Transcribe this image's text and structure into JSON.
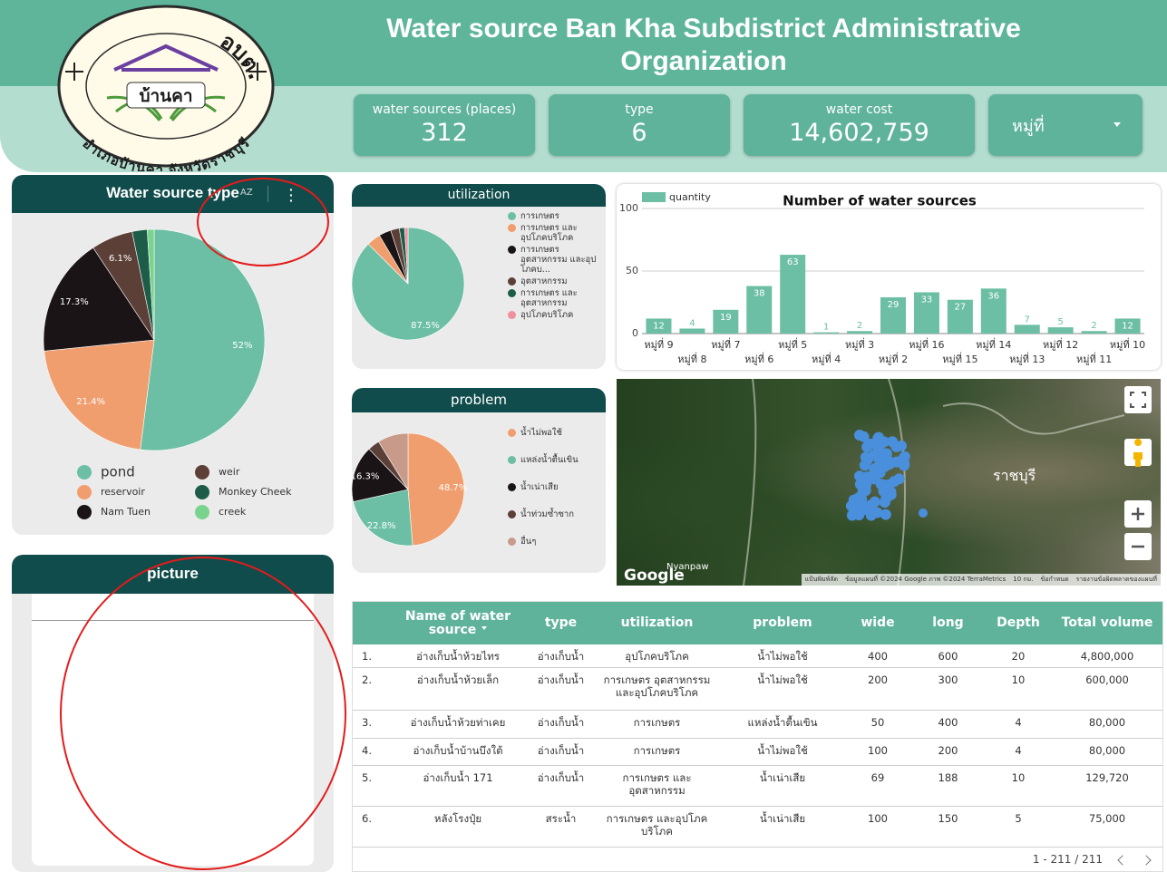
{
  "header": {
    "logo": {
      "top": "อบต.บ้านคา",
      "center": "บ้านคา",
      "bottom": "อำเภอบ้านคา จังหวัดราชบุรี"
    },
    "title": "Water source Ban Kha Subdistrict Administrative Organization"
  },
  "scorecards": [
    {
      "label": "water sources (places)",
      "value": "312"
    },
    {
      "label": "type",
      "value": "6"
    },
    {
      "label": "water cost",
      "value": "14,602,759"
    }
  ],
  "filter": {
    "label": "หมู่ที่"
  },
  "sort_icon": "AZ",
  "chart_data": [
    {
      "type": "pie",
      "title": "Water source type",
      "categories": [
        "pond",
        "reservoir",
        "Nam Tuen",
        "weir",
        "Monkey Cheek",
        "creek"
      ],
      "values": [
        52,
        21.4,
        17.3,
        6.1,
        2.2,
        1.0
      ],
      "value_labels": [
        "52%",
        "21.4%",
        "17.3%",
        "6.1%",
        null,
        null
      ],
      "colors": [
        "#6cbfa4",
        "#f19e6f",
        "#1b1416",
        "#5c4038",
        "#1e5c4a",
        "#78d48c"
      ],
      "legend": "bottom"
    },
    {
      "type": "pie",
      "title": "utilization",
      "categories": [
        "การเกษตร",
        "การเกษตร และ อุปโภคบริโภค",
        "การเกษตร อุตสาหกรรม และอุปโภคบ...",
        "อุตสาหกรรม",
        "การเกษตร และ อุตสาหกรรม",
        "อุปโภคบริโภค"
      ],
      "values": [
        87.5,
        4.0,
        3.5,
        2.5,
        1.5,
        1.0
      ],
      "value_labels": [
        "87.5%",
        null,
        null,
        null,
        null,
        null
      ],
      "colors": [
        "#6cbfa4",
        "#f19e6f",
        "#1b1416",
        "#5c4038",
        "#1e5c4a",
        "#f0909c"
      ],
      "legend": "right"
    },
    {
      "type": "pie",
      "title": "problem",
      "categories": [
        "น้ำไม่พอใช้",
        "แหล่งน้ำตื้นเขิน",
        "น้ำเน่าเสีย",
        "น้ำท่วมซ้ำซาก",
        "อื่นๆ"
      ],
      "values": [
        48.7,
        22.8,
        16.3,
        3.4,
        8.8
      ],
      "value_labels": [
        "48.7%",
        "22.8%",
        "16.3%",
        null,
        null
      ],
      "colors": [
        "#f19e6f",
        "#6cbfa4",
        "#1b1416",
        "#5c4038",
        "#c79a8a"
      ],
      "legend": "right"
    },
    {
      "type": "bar",
      "title": "Number of water sources",
      "categories": [
        "หมู่ที่ 9",
        "หมู่ที่ 8",
        "หมู่ที่ 7",
        "หมู่ที่ 6",
        "หมู่ที่ 5",
        "หมู่ที่ 4",
        "หมู่ที่ 3",
        "หมู่ที่ 2",
        "หมู่ที่ 16",
        "หมู่ที่ 15",
        "หมู่ที่ 14",
        "หมู่ที่ 13",
        "หมู่ที่ 12",
        "หมู่ที่ 11",
        "หมู่ที่ 10"
      ],
      "series": [
        {
          "name": "quantity",
          "color": "#6cbfa4",
          "values": [
            12,
            4,
            19,
            38,
            63,
            1,
            2,
            29,
            33,
            27,
            36,
            7,
            5,
            2,
            12
          ]
        }
      ],
      "ylim": [
        0,
        100
      ],
      "yticks": [
        0,
        50,
        100
      ],
      "grid": true,
      "legend": "top-left"
    }
  ],
  "picture": {
    "title": "picture"
  },
  "map": {
    "logo": "Google",
    "place_labels": [
      "Nyanpaw",
      "ราชบุรี"
    ],
    "attribution": [
      "แป้นพิมพ์ลัด",
      "ข้อมูลแผนที่ ©2024 Google ภาพ ©2024 TerraMetrics",
      "10 กม.",
      "ข้อกำหนด",
      "รายงานข้อผิดพลาดของแผนที่"
    ]
  },
  "table": {
    "columns": [
      "Name of water source",
      "type",
      "utilization",
      "problem",
      "wide",
      "long",
      "Depth",
      "Total volume"
    ],
    "rows": [
      [
        "1.",
        "อ่างเก็บน้ำห้วยไทร",
        "อ่างเก็บน้ำ",
        "อุปโภคบริโภค",
        "น้ำไม่พอใช้",
        "400",
        "600",
        "20",
        "4,800,000"
      ],
      [
        "2.",
        "อ่างเก็บน้ำห้วยเล็ก",
        "อ่างเก็บน้ำ",
        "การเกษตร อุตสาหกรรม และอุปโภคบริโภค",
        "น้ำไม่พอใช้",
        "200",
        "300",
        "10",
        "600,000"
      ],
      [
        "3.",
        "อ่างเก็บน้ำห้วยท่าเคย",
        "อ่างเก็บน้ำ",
        "การเกษตร",
        "แหล่งน้ำตื้นเขิน",
        "50",
        "400",
        "4",
        "80,000"
      ],
      [
        "4.",
        "อ่างเก็บน้ำบ้านบึงใต้",
        "อ่างเก็บน้ำ",
        "การเกษตร",
        "น้ำไม่พอใช้",
        "100",
        "200",
        "4",
        "80,000"
      ],
      [
        "5.",
        "อ่างเก็บน้ำ 171",
        "อ่างเก็บน้ำ",
        "การเกษตร และ อุตสาหกรรม",
        "น้ำเน่าเสีย",
        "69",
        "188",
        "10",
        "129,720"
      ],
      [
        "6.",
        "หลังโรงปุ๋ย",
        "สระน้ำ",
        "การเกษตร และอุปโภค บริโภค",
        "น้ำเน่าเสีย",
        "100",
        "150",
        "5",
        "75,000"
      ]
    ],
    "pagination": "1 - 211 / 211"
  }
}
